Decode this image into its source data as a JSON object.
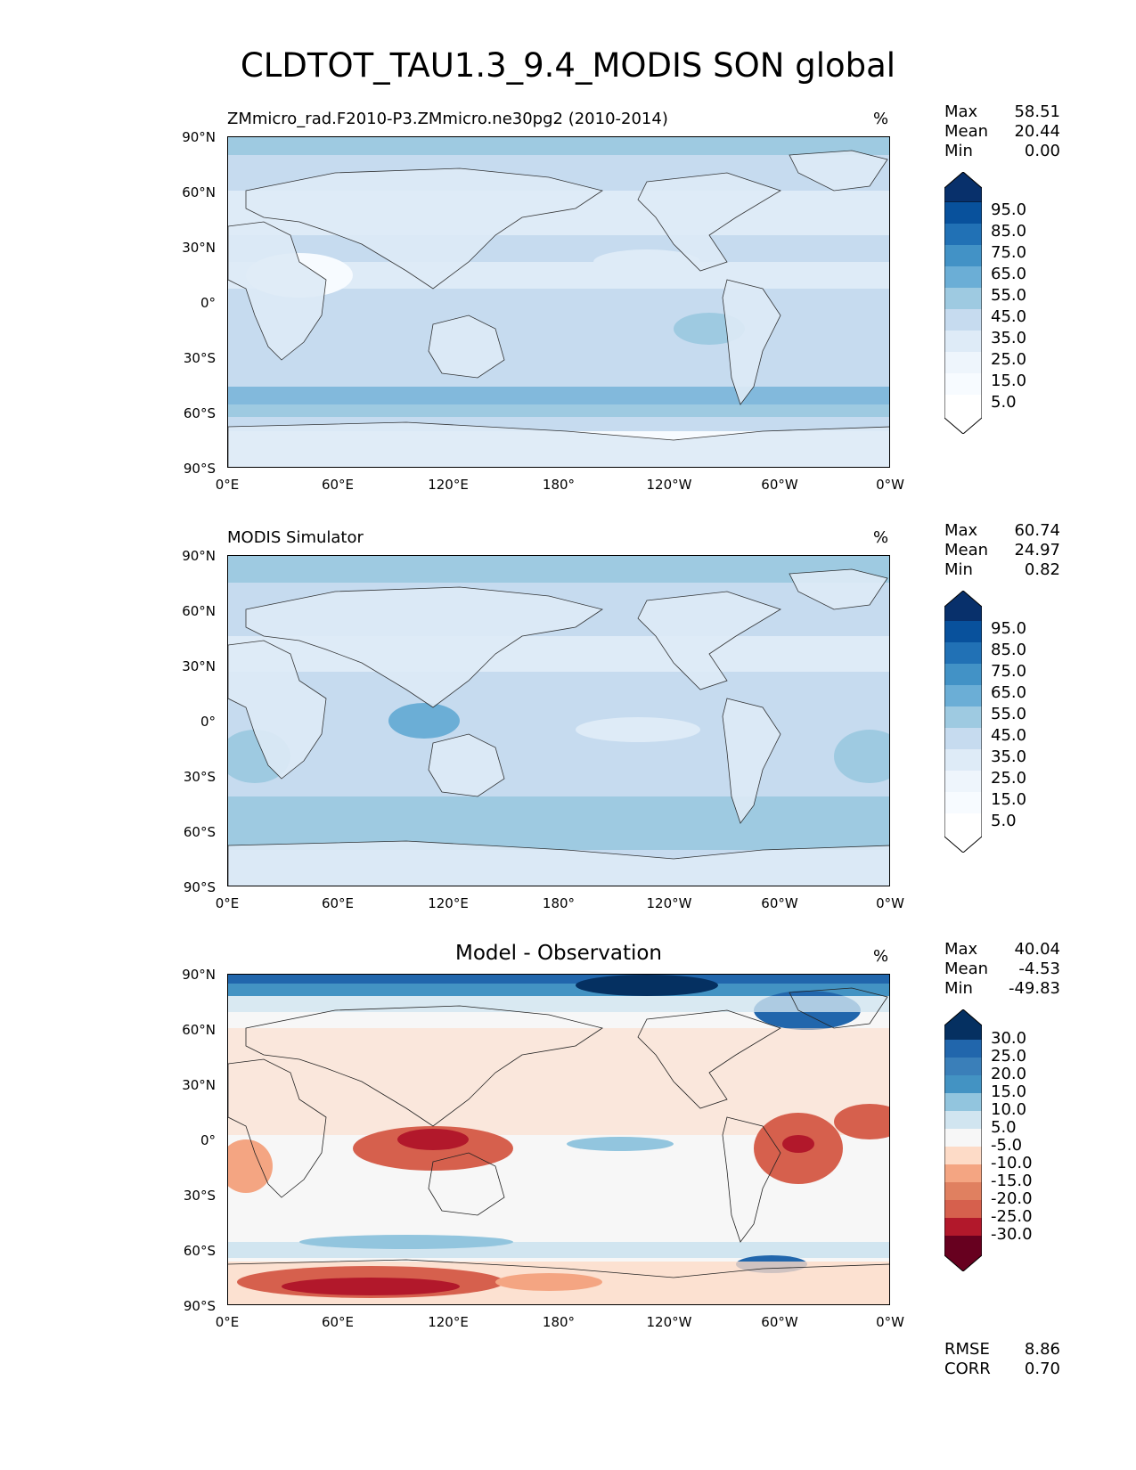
{
  "figure": {
    "title": "CLDTOT_TAU1.3_9.4_MODIS SON global"
  },
  "axes": {
    "lat_ticks": [
      "90°N",
      "60°N",
      "30°N",
      "0°",
      "30°S",
      "60°S",
      "90°S"
    ],
    "lon_ticks": [
      "0°E",
      "60°E",
      "120°E",
      "180°",
      "120°W",
      "60°W",
      "0°W"
    ]
  },
  "panels": [
    {
      "title": "ZMmicro_rad.F2010-P3.ZMmicro.ne30pg2 (2010-2014)",
      "unit": "%",
      "stats": [
        {
          "label": "Max",
          "value": "58.51"
        },
        {
          "label": "Mean",
          "value": "20.44"
        },
        {
          "label": "Min",
          "value": "0.00"
        }
      ],
      "colorbar": {
        "ticks": [
          "95.0",
          "85.0",
          "75.0",
          "65.0",
          "55.0",
          "45.0",
          "35.0",
          "25.0",
          "15.0",
          "5.0"
        ]
      }
    },
    {
      "title": "MODIS Simulator",
      "unit": "%",
      "stats": [
        {
          "label": "Max",
          "value": "60.74"
        },
        {
          "label": "Mean",
          "value": "24.97"
        },
        {
          "label": "Min",
          "value": "0.82"
        }
      ],
      "colorbar": {
        "ticks": [
          "95.0",
          "85.0",
          "75.0",
          "65.0",
          "55.0",
          "45.0",
          "35.0",
          "25.0",
          "15.0",
          "5.0"
        ]
      }
    },
    {
      "title": "Model - Observation",
      "unit": "%",
      "stats": [
        {
          "label": "Max",
          "value": "40.04"
        },
        {
          "label": "Mean",
          "value": "-4.53"
        },
        {
          "label": "Min",
          "value": "-49.83"
        }
      ],
      "colorbar": {
        "ticks": [
          "30.0",
          "25.0",
          "20.0",
          "15.0",
          "10.0",
          "5.0",
          "-5.0",
          "-10.0",
          "-15.0",
          "-20.0",
          "-25.0",
          "-30.0"
        ]
      },
      "metrics": [
        {
          "label": "RMSE",
          "value": "8.86"
        },
        {
          "label": "CORR",
          "value": "0.70"
        }
      ]
    }
  ],
  "colors": {
    "blues": [
      "#f7fbff",
      "#deebf7",
      "#c6dbef",
      "#9ecae1",
      "#6baed6",
      "#4292c6",
      "#2171b5",
      "#08519c",
      "#08306b"
    ],
    "diverging": [
      "#67001f",
      "#b2182b",
      "#d6604d",
      "#f4a582",
      "#fddbc7",
      "#f7f7f7",
      "#d1e5f0",
      "#92c5de",
      "#4393c3",
      "#2166ac",
      "#053061"
    ]
  }
}
